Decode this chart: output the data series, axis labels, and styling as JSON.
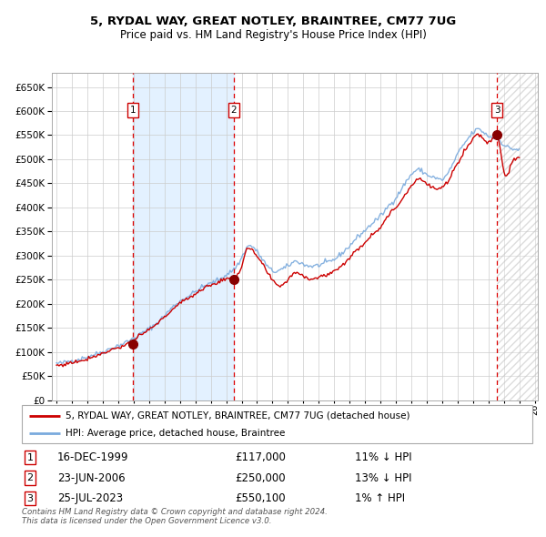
{
  "title": "5, RYDAL WAY, GREAT NOTLEY, BRAINTREE, CM77 7UG",
  "subtitle": "Price paid vs. HM Land Registry's House Price Index (HPI)",
  "ylim": [
    0,
    680000
  ],
  "yticks": [
    0,
    50000,
    100000,
    150000,
    200000,
    250000,
    300000,
    350000,
    400000,
    450000,
    500000,
    550000,
    600000,
    650000
  ],
  "ytick_labels": [
    "£0",
    "£50K",
    "£100K",
    "£150K",
    "£200K",
    "£250K",
    "£300K",
    "£350K",
    "£400K",
    "£450K",
    "£500K",
    "£550K",
    "£600K",
    "£650K"
  ],
  "x_start_year": 1995,
  "x_end_year": 2026,
  "sale_dates": [
    "1999-12-16",
    "2006-06-23",
    "2023-07-25"
  ],
  "sale_prices": [
    117000,
    250000,
    550100
  ],
  "sale_labels": [
    "1",
    "2",
    "3"
  ],
  "legend_line1": "5, RYDAL WAY, GREAT NOTLEY, BRAINTREE, CM77 7UG (detached house)",
  "legend_line2": "HPI: Average price, detached house, Braintree",
  "table_entries": [
    {
      "label": "1",
      "date": "16-DEC-1999",
      "price": "£117,000",
      "hpi": "11% ↓ HPI"
    },
    {
      "label": "2",
      "date": "23-JUN-2006",
      "price": "£250,000",
      "hpi": "13% ↓ HPI"
    },
    {
      "label": "3",
      "date": "25-JUL-2023",
      "price": "£550,100",
      "hpi": "1% ↑ HPI"
    }
  ],
  "footer": "Contains HM Land Registry data © Crown copyright and database right 2024.\nThis data is licensed under the Open Government Licence v3.0.",
  "hpi_line_color": "#7aaadd",
  "price_line_color": "#cc0000",
  "marker_color": "#880000",
  "vline_color": "#dd0000",
  "shading_color": "#ddeeff",
  "hatch_color": "#bbbbbb",
  "grid_color": "#cccccc",
  "box_label_color": "#cc0000"
}
